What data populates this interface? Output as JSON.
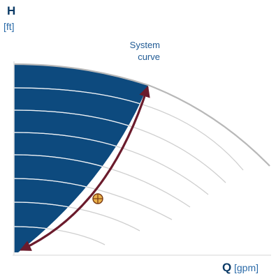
{
  "axes": {
    "y_letter": "H",
    "y_unit": "[ft]",
    "x_letter": "Q",
    "x_unit": "[gpm]"
  },
  "annotation": {
    "line1": "System",
    "line2": "curve"
  },
  "colors": {
    "region_fill": "#0d4a7e",
    "system_curve": "#6b1b2c",
    "pump_curve_max": "#b8b8b8",
    "pump_curve_reduced": "#cfcfcf",
    "axis": "#e3e3e3",
    "operating_point_fill": "#e9b04a",
    "operating_point_stroke": "#7a3a12"
  },
  "diagram": {
    "pump_curves_shown": 8,
    "operating_point": "intersection of system curve and a reduced-speed pump curve"
  }
}
